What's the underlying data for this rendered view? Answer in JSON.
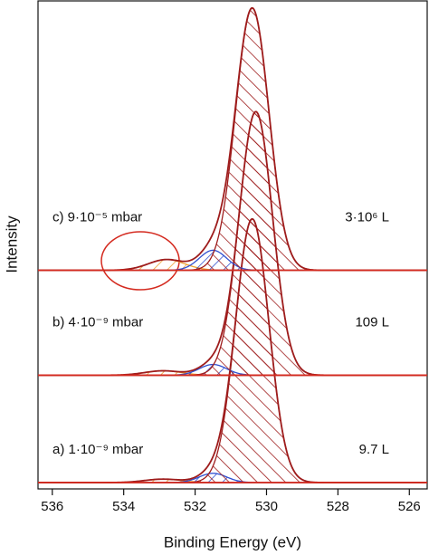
{
  "chart_data": {
    "type": "xps-stack",
    "x_label": "Binding Energy (eV)",
    "y_label": "Intensity",
    "xlim": [
      536.4,
      525.5
    ],
    "xticks": [
      536,
      534,
      532,
      530,
      528,
      526
    ],
    "ylim": [
      0,
      100
    ],
    "baseline_color": "#d42a1f",
    "envelope_color": "#9e1c1c",
    "spectra": [
      {
        "name": "a) 1·10⁻⁹ mbar",
        "exposure": "9.7 L",
        "offset": 1.3,
        "components": [
          {
            "center": 530.4,
            "height": 54,
            "fwhm": 1.1,
            "color": "#9e1c1c"
          },
          {
            "center": 531.5,
            "height": 1.9,
            "fwhm": 0.9,
            "color": "#2f4fd0"
          },
          {
            "center": 532.9,
            "height": 0.7,
            "fwhm": 1.2,
            "color": "#f0a030"
          }
        ]
      },
      {
        "name": "b) 4·10⁻⁹ mbar",
        "exposure": "109 L",
        "offset": 23.3,
        "components": [
          {
            "center": 530.3,
            "height": 54,
            "fwhm": 1.1,
            "color": "#9e1c1c"
          },
          {
            "center": 531.5,
            "height": 2.2,
            "fwhm": 0.9,
            "color": "#2f4fd0"
          },
          {
            "center": 532.9,
            "height": 0.9,
            "fwhm": 1.2,
            "color": "#f0a030"
          }
        ]
      },
      {
        "name": "c) 9·10⁻⁵ mbar",
        "exposure": "3·10⁶ L",
        "offset": 44.8,
        "components": [
          {
            "center": 530.4,
            "height": 53.7,
            "fwhm": 1.1,
            "color": "#9e1c1c"
          },
          {
            "center": 531.5,
            "height": 4.1,
            "fwhm": 0.9,
            "color": "#2f4fd0"
          },
          {
            "center": 532.8,
            "height": 2.2,
            "fwhm": 1.2,
            "color": "#f0a030"
          }
        ]
      }
    ]
  }
}
